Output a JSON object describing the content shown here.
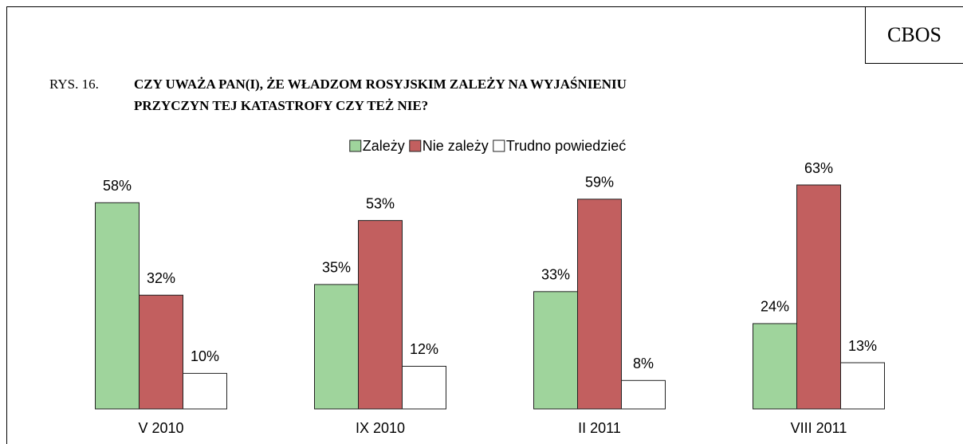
{
  "chart_data": {
    "type": "bar",
    "source": "CBOS",
    "figure_label": "RYS. 16.",
    "title": "CZY UWAŻA PAN(I), ŻE WŁADZOM ROSYJSKIM ZALEŻY NA WYJAŚNIENIU PRZYCZYN TEJ KATASTROFY CZY TEŻ NIE?",
    "categories": [
      "V 2010",
      "IX 2010",
      "II 2011",
      "VIII 2011"
    ],
    "series": [
      {
        "name": "Zależy",
        "color": "#9fd49c",
        "values": [
          58,
          35,
          33,
          24
        ],
        "value_labels": [
          "58%",
          "35%",
          "33%",
          "24%"
        ]
      },
      {
        "name": "Nie zależy",
        "color": "#c25f5f",
        "values": [
          32,
          53,
          59,
          63
        ],
        "value_labels": [
          "32%",
          "53%",
          "59%",
          "63%"
        ]
      },
      {
        "name": "Trudno powiedzieć",
        "color": "#ffffff",
        "values": [
          10,
          12,
          8,
          13
        ],
        "value_labels": [
          "10%",
          "12%",
          "8%",
          "13%"
        ]
      }
    ],
    "legend": "top"
  }
}
